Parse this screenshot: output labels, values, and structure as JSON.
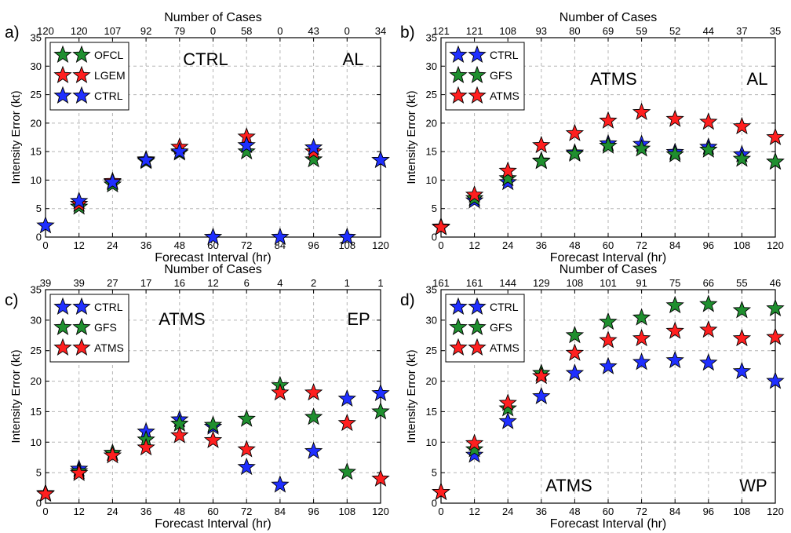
{
  "colors": {
    "CTRL": "#1f2fff",
    "GFS": "#1f8f2f",
    "OFCL": "#1f8f2f",
    "LGEM": "#ff1f1f",
    "ATMS": "#ff1f1f"
  },
  "chart_data": [
    {
      "type": "scatter",
      "panel_label": "a)",
      "title": "CTRL",
      "region": "AL",
      "xlabel": "Forecast Interval (hr)",
      "ylabel": "Intensity Error (kt)",
      "top_axis_label": "Number of Cases",
      "x": [
        0,
        12,
        24,
        36,
        48,
        60,
        72,
        84,
        96,
        108,
        120
      ],
      "x_ticks": [
        "0",
        "12",
        "24",
        "36",
        "48",
        "60",
        "72",
        "84",
        "96",
        "108",
        "120"
      ],
      "y_ticks": [
        "0",
        "5",
        "10",
        "15",
        "20",
        "25",
        "30",
        "35"
      ],
      "ylim": [
        0,
        35
      ],
      "xlim": [
        0,
        120
      ],
      "cases": [
        "120",
        "120",
        "107",
        "92",
        "79",
        "0",
        "58",
        "0",
        "43",
        "0",
        "34"
      ],
      "legend_position": "top-left",
      "grid": true,
      "series": [
        {
          "name": "OFCL",
          "values": [
            null,
            5.3,
            9.2,
            13.3,
            14.8,
            null,
            15.0,
            null,
            13.6,
            null,
            null
          ]
        },
        {
          "name": "LGEM",
          "values": [
            null,
            5.8,
            9.8,
            13.6,
            15.8,
            null,
            17.6,
            null,
            15.0,
            null,
            13.5
          ]
        },
        {
          "name": "CTRL",
          "values": [
            2.0,
            6.3,
            9.6,
            13.5,
            15.0,
            0.0,
            16.1,
            0.0,
            15.7,
            0.0,
            13.5
          ]
        }
      ]
    },
    {
      "type": "scatter",
      "panel_label": "b)",
      "title": "ATMS",
      "region": "AL",
      "xlabel": "Forecast Interval (hr)",
      "ylabel": "Intensity Error (kt)",
      "top_axis_label": "Number of Cases",
      "x": [
        0,
        12,
        24,
        36,
        48,
        60,
        72,
        84,
        96,
        108,
        120
      ],
      "x_ticks": [
        "0",
        "12",
        "24",
        "36",
        "48",
        "60",
        "72",
        "84",
        "96",
        "108",
        "120"
      ],
      "y_ticks": [
        "0",
        "5",
        "10",
        "15",
        "20",
        "25",
        "30",
        "35"
      ],
      "ylim": [
        0,
        35
      ],
      "xlim": [
        0,
        120
      ],
      "cases": [
        "121",
        "121",
        "108",
        "93",
        "80",
        "69",
        "59",
        "52",
        "44",
        "37",
        "35"
      ],
      "legend_position": "top-left",
      "grid": true,
      "series": [
        {
          "name": "CTRL",
          "values": [
            1.8,
            6.4,
            9.6,
            13.4,
            14.8,
            16.4,
            16.3,
            14.9,
            15.8,
            14.5,
            13.2
          ]
        },
        {
          "name": "GFS",
          "values": [
            1.7,
            6.8,
            10.3,
            13.3,
            14.6,
            16.0,
            15.5,
            14.5,
            15.3,
            13.7,
            13.2
          ]
        },
        {
          "name": "ATMS",
          "values": [
            1.7,
            7.4,
            11.6,
            16.1,
            18.2,
            20.4,
            21.9,
            20.7,
            20.2,
            19.4,
            17.5
          ]
        }
      ]
    },
    {
      "type": "scatter",
      "panel_label": "c)",
      "title": "ATMS",
      "region": "EP",
      "xlabel": "Forecast Interval (hr)",
      "ylabel": "Intensity Error (kt)",
      "top_axis_label": "Number of Cases",
      "x": [
        0,
        12,
        24,
        36,
        48,
        60,
        72,
        84,
        96,
        108,
        120
      ],
      "x_ticks": [
        "0",
        "12",
        "24",
        "36",
        "48",
        "60",
        "72",
        "84",
        "96",
        "108",
        "120"
      ],
      "y_ticks": [
        "0",
        "5",
        "10",
        "15",
        "20",
        "25",
        "30",
        "35"
      ],
      "ylim": [
        0,
        35
      ],
      "xlim": [
        0,
        120
      ],
      "cases": [
        "39",
        "39",
        "27",
        "17",
        "16",
        "12",
        "6",
        "4",
        "2",
        "1",
        "1"
      ],
      "legend_position": "top-left",
      "grid": true,
      "series": [
        {
          "name": "CTRL",
          "values": [
            1.6,
            5.6,
            8.2,
            11.7,
            13.7,
            12.5,
            5.9,
            3.0,
            8.5,
            17.1,
            18.0
          ]
        },
        {
          "name": "GFS",
          "values": [
            1.6,
            5.2,
            8.2,
            10.4,
            13.0,
            12.8,
            13.8,
            19.3,
            14.1,
            5.1,
            15.0
          ]
        },
        {
          "name": "ATMS",
          "values": [
            1.5,
            4.9,
            7.8,
            9.1,
            11.1,
            10.3,
            8.8,
            18.1,
            18.1,
            13.1,
            4.0
          ]
        }
      ]
    },
    {
      "type": "scatter",
      "panel_label": "d)",
      "title": "ATMS",
      "region": "WP",
      "xlabel": "Forecast Interval (hr)",
      "ylabel": "Intensity Error (kt)",
      "top_axis_label": "Number of Cases",
      "x": [
        0,
        12,
        24,
        36,
        48,
        60,
        72,
        84,
        96,
        108,
        120
      ],
      "x_ticks": [
        "0",
        "12",
        "24",
        "36",
        "48",
        "60",
        "72",
        "84",
        "96",
        "108",
        "120"
      ],
      "y_ticks": [
        "0",
        "5",
        "10",
        "15",
        "20",
        "25",
        "30",
        "35"
      ],
      "ylim": [
        0,
        35
      ],
      "xlim": [
        0,
        120
      ],
      "cases": [
        "161",
        "161",
        "144",
        "129",
        "108",
        "101",
        "91",
        "75",
        "66",
        "55",
        "46"
      ],
      "legend_position": "top-left",
      "grid": true,
      "series": [
        {
          "name": "CTRL",
          "values": [
            1.8,
            7.9,
            13.4,
            17.5,
            21.3,
            22.4,
            23.1,
            23.4,
            23.0,
            21.6,
            20.0
          ]
        },
        {
          "name": "GFS",
          "values": [
            1.8,
            8.8,
            15.5,
            21.3,
            27.5,
            29.7,
            30.4,
            32.4,
            32.6,
            31.6,
            31.9
          ]
        },
        {
          "name": "ATMS",
          "values": [
            1.8,
            9.8,
            16.4,
            20.8,
            24.6,
            26.7,
            27.0,
            28.2,
            28.4,
            27.0,
            27.2
          ]
        }
      ]
    }
  ]
}
